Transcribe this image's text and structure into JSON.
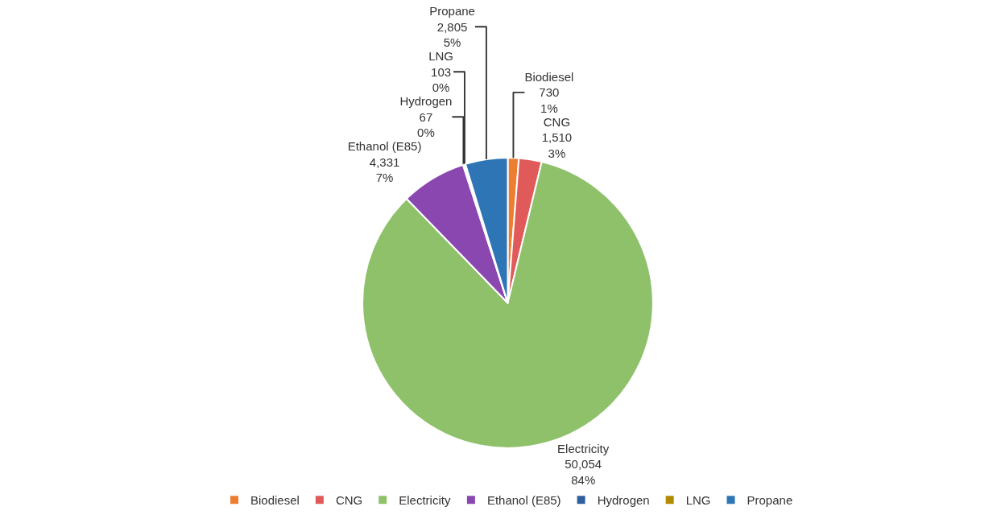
{
  "chart_data": {
    "type": "pie",
    "categories": [
      "Biodiesel",
      "CNG",
      "Electricity",
      "Ethanol (E85)",
      "Hydrogen",
      "LNG",
      "Propane"
    ],
    "values": [
      730,
      1510,
      50054,
      4331,
      67,
      103,
      2805
    ],
    "colors": [
      "#ed7d31",
      "#e05a5a",
      "#8fc16b",
      "#8a47b0",
      "#2e5f9e",
      "#b08a00",
      "#2e75b6"
    ],
    "value_labels": [
      "730\n1%",
      "1,510\n3%",
      "50,054\n84%",
      "4,331\n7%",
      "67\n0%",
      "103\n0%",
      "2,805\n5%"
    ],
    "legend": "bottom"
  }
}
